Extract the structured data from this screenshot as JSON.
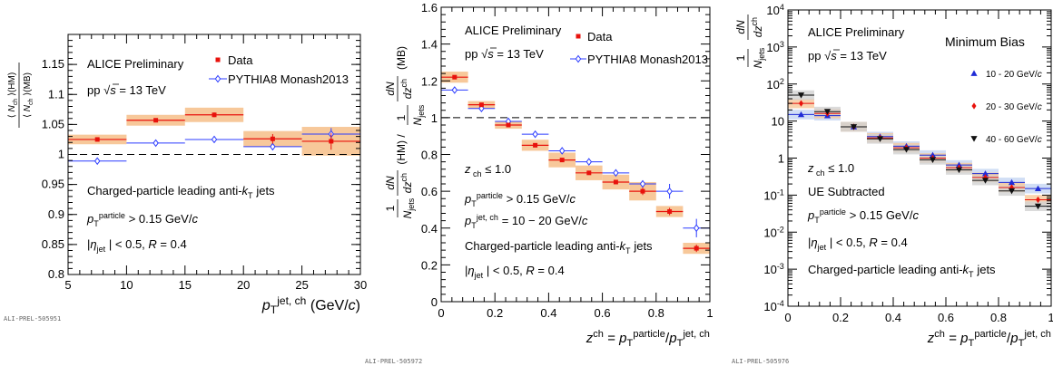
{
  "chart_data": [
    {
      "type": "scatter",
      "title": "",
      "xlabel": "p_T^{jet, ch} (GeV/c)",
      "ylabel": "⟨N_ch⟩(HM) / ⟨N_ch⟩(MB)",
      "xlim": [
        5,
        30
      ],
      "ylim": [
        0.8,
        1.2
      ],
      "yscale": "linear",
      "xticks": [
        "5",
        "10",
        "15",
        "20",
        "25",
        "30"
      ],
      "yticks": [
        "0.8",
        "0.85",
        "0.9",
        "0.95",
        "1",
        "1.05",
        "1.1",
        "1.15"
      ],
      "reference_line": 1,
      "grid": false,
      "legend_position": "top-right",
      "series": [
        {
          "name": "Data",
          "marker": "square",
          "color": "#e8120c",
          "band_color": "#f7c89a",
          "x": [
            7.5,
            12.5,
            17.5,
            22.5,
            27.5
          ],
          "x_halfwidth": [
            2.5,
            2.5,
            2.5,
            2.5,
            2.5
          ],
          "y": [
            1.025,
            1.057,
            1.066,
            1.026,
            1.022
          ],
          "syst": [
            0.008,
            0.009,
            0.012,
            0.013,
            0.024
          ],
          "stat": [
            0.003,
            0.003,
            0.004,
            0.008,
            0.014
          ]
        },
        {
          "name": "PYTHIA8 Monash2013",
          "marker": "open-diamond",
          "color": "#2b3bff",
          "x": [
            7.5,
            12.5,
            17.5,
            22.5,
            27.5
          ],
          "x_halfwidth": [
            2.5,
            2.5,
            2.5,
            2.5,
            2.5
          ],
          "y": [
            0.989,
            1.019,
            1.025,
            1.013,
            1.034
          ],
          "stat": [
            0.001,
            0.002,
            0.003,
            0.006,
            0.01
          ]
        }
      ],
      "annotations": [
        "ALICE Preliminary",
        "pp √s = 13 TeV",
        "Charged-particle leading anti-k_T jets",
        "p_T^{particle} > 0.15 GeV/c",
        "|η_jet| < 0.5, R = 0.4"
      ],
      "footer": "ALI-PREL-505951"
    },
    {
      "type": "scatter",
      "title": "",
      "xlabel": "z^{ch} = p_T^{particle}/p_T^{jet, ch}",
      "ylabel": "(1/N_jets dN/dz^{ch})(HM) / (1/N_jets dN/dz^{ch})(MB)",
      "xlim": [
        0,
        1
      ],
      "ylim": [
        0,
        1.6
      ],
      "yscale": "linear",
      "xticks": [
        "0",
        "0.2",
        "0.4",
        "0.6",
        "0.8",
        "1"
      ],
      "yticks": [
        "0",
        "0.2",
        "0.4",
        "0.6",
        "0.8",
        "1",
        "1.2",
        "1.4",
        "1.6"
      ],
      "reference_line": 1,
      "grid": false,
      "legend_position": "top-right",
      "series": [
        {
          "name": "Data",
          "marker": "square",
          "color": "#e8120c",
          "band_color": "#f7c89a",
          "x": [
            0.05,
            0.15,
            0.25,
            0.35,
            0.45,
            0.55,
            0.65,
            0.75,
            0.85,
            0.95
          ],
          "x_halfwidth": [
            0.05,
            0.05,
            0.05,
            0.05,
            0.05,
            0.05,
            0.05,
            0.05,
            0.05,
            0.05
          ],
          "y": [
            1.22,
            1.07,
            0.96,
            0.85,
            0.77,
            0.7,
            0.65,
            0.6,
            0.49,
            0.29
          ],
          "syst": [
            0.03,
            0.02,
            0.02,
            0.03,
            0.04,
            0.04,
            0.04,
            0.05,
            0.03,
            0.03
          ],
          "stat": [
            0.01,
            0.01,
            0.01,
            0.01,
            0.01,
            0.01,
            0.01,
            0.02,
            0.02,
            0.02
          ]
        },
        {
          "name": "PYTHIA8 Monash2013",
          "marker": "open-diamond",
          "color": "#2b3bff",
          "x": [
            0.05,
            0.15,
            0.25,
            0.35,
            0.45,
            0.55,
            0.65,
            0.75,
            0.85,
            0.95
          ],
          "x_halfwidth": [
            0.05,
            0.05,
            0.05,
            0.05,
            0.05,
            0.05,
            0.05,
            0.05,
            0.05,
            0.05
          ],
          "y": [
            1.15,
            1.05,
            0.98,
            0.91,
            0.82,
            0.76,
            0.7,
            0.64,
            0.6,
            0.4
          ],
          "stat": [
            0.01,
            0.01,
            0.01,
            0.01,
            0.01,
            0.01,
            0.01,
            0.02,
            0.04,
            0.05
          ]
        }
      ],
      "annotations": [
        "ALICE Preliminary",
        "pp √s = 13 TeV",
        "z_ch ≤ 1.0",
        "p_T^{particle} > 0.15 GeV/c",
        "p_T^{jet, ch} = 10 – 20 GeV/c",
        "Charged-particle leading anti-k_T jets",
        "|η_jet| < 0.5, R = 0.4"
      ],
      "footer": "ALI-PREL-505972"
    },
    {
      "type": "scatter",
      "title": "",
      "xlabel": "z^{ch} = p_T^{particle}/p_T^{jet, ch}",
      "ylabel": "1/N_jets dN/dz^{ch}",
      "xlim": [
        0,
        1
      ],
      "ylim": [
        0.0001,
        10000
      ],
      "yscale": "log",
      "xticks": [
        "0",
        "0.2",
        "0.4",
        "0.6",
        "0.8",
        "1"
      ],
      "yticks": [
        "10^{-4}",
        "10^{-3}",
        "10^{-2}",
        "10^{-1}",
        "1",
        "10",
        "10^{2}",
        "10^{3}",
        "10^{4}"
      ],
      "grid": false,
      "legend_title": "Minimum Bias",
      "legend_position": "top-right",
      "series": [
        {
          "name": "10 - 20 GeV/c",
          "marker": "triangle-up",
          "color": "#1f2bd6",
          "band_color": "#c6d6f2",
          "x": [
            0.05,
            0.15,
            0.25,
            0.35,
            0.45,
            0.55,
            0.65,
            0.75,
            0.85,
            0.95
          ],
          "x_halfwidth": [
            0.05,
            0.05,
            0.05,
            0.05,
            0.05,
            0.05,
            0.05,
            0.05,
            0.05,
            0.05
          ],
          "y": [
            15,
            14,
            7,
            3.8,
            2.1,
            1.2,
            0.65,
            0.38,
            0.22,
            0.15
          ]
        },
        {
          "name": "20 - 30 GeV/c",
          "marker": "diamond",
          "color": "#e8120c",
          "band_color": "#f7c89a",
          "x": [
            0.05,
            0.15,
            0.25,
            0.35,
            0.45,
            0.55,
            0.65,
            0.75,
            0.85,
            0.95
          ],
          "x_halfwidth": [
            0.05,
            0.05,
            0.05,
            0.05,
            0.05,
            0.05,
            0.05,
            0.05,
            0.05,
            0.05
          ],
          "y": [
            30,
            16,
            7,
            3.5,
            1.9,
            1.0,
            0.55,
            0.3,
            0.16,
            0.075
          ]
        },
        {
          "name": "40 - 60 GeV/c",
          "marker": "triangle-down",
          "color": "#111111",
          "band_color": "#d2d2d2",
          "x": [
            0.05,
            0.15,
            0.25,
            0.35,
            0.45,
            0.55,
            0.65,
            0.75,
            0.85,
            0.95
          ],
          "x_halfwidth": [
            0.05,
            0.05,
            0.05,
            0.05,
            0.05,
            0.05,
            0.05,
            0.05,
            0.05,
            0.05
          ],
          "y": [
            50,
            18,
            7,
            3.3,
            1.7,
            0.9,
            0.48,
            0.25,
            0.13,
            0.05
          ]
        }
      ],
      "annotations": [
        "ALICE Preliminary",
        "pp √s = 13 TeV",
        "z_ch ≤ 1.0",
        "UE Subtracted",
        "p_T^{particle} > 0.15 GeV/c",
        "|η_jet| < 0.5, R = 0.4",
        "Charged-particle leading anti-k_T jets"
      ],
      "footer": "ALI-PREL-505976"
    }
  ]
}
